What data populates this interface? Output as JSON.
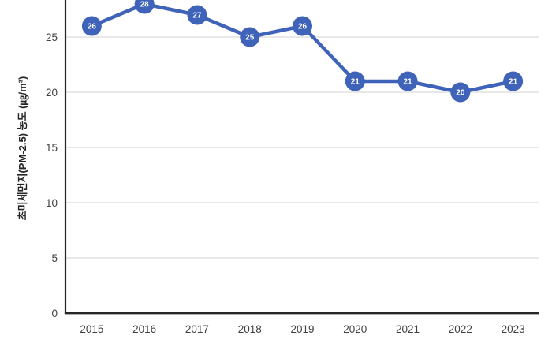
{
  "chart_data": {
    "type": "line",
    "title": "",
    "categories": [
      "2015",
      "2016",
      "2017",
      "2018",
      "2019",
      "2020",
      "2021",
      "2022",
      "2023"
    ],
    "series": [
      {
        "name": "초미세먼지(PM-2.5) 농도",
        "values": [
          26,
          28,
          27,
          25,
          26,
          21,
          21,
          20,
          21
        ]
      }
    ],
    "data_labels": [
      "26",
      "28",
      "27",
      "25",
      "26",
      "21",
      "21",
      "20",
      "21"
    ],
    "xlabel": "",
    "ylabel": "초미세먼지(PM-2.5) 농도 (㎍/m³)",
    "ylim": [
      0,
      28.4
    ],
    "yticks": [
      0,
      5,
      10,
      15,
      20,
      25
    ],
    "grid": true,
    "legend_position": "none",
    "marker_style": "circle-with-value",
    "top_cropped": true,
    "colors": {
      "line": "#3F63B8",
      "marker_fill": "#3F63B8",
      "marker_text": "#FFFFFF",
      "gridline": "#D9D9D9",
      "axis": "#262626",
      "tick_text": "#404040"
    }
  }
}
